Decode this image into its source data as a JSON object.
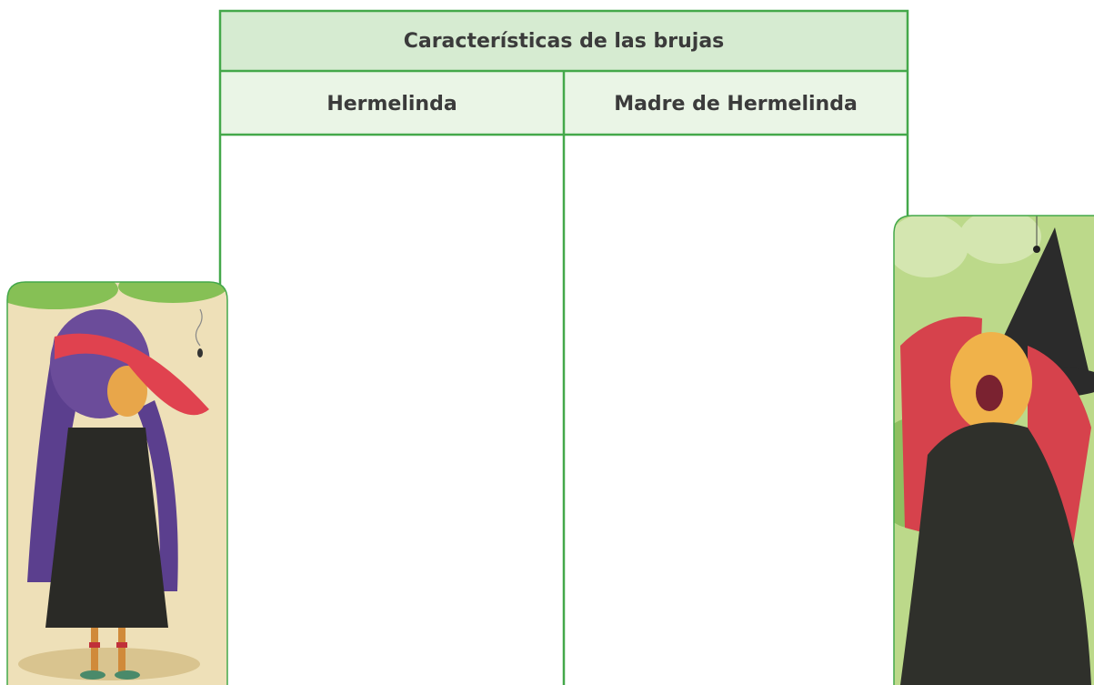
{
  "table": {
    "title": "Características de las brujas",
    "headers": [
      "Hermelinda",
      "Madre de Hermelinda"
    ]
  }
}
